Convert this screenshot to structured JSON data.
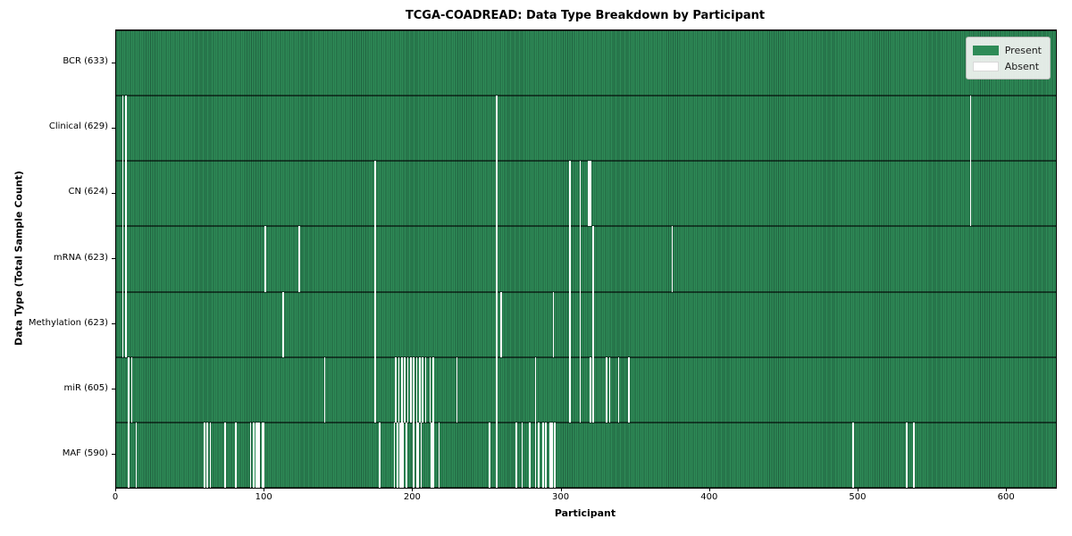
{
  "chart_data": {
    "type": "heatmap",
    "title": "TCGA-COADREAD: Data Type Breakdown by Participant",
    "xlabel": "Participant",
    "ylabel": "Data Type (Total Sample Count)",
    "xlim": [
      0,
      633
    ],
    "x_ticks": [
      0,
      100,
      200,
      300,
      400,
      500,
      600
    ],
    "total_participants": 633,
    "grid": false,
    "legend_position": "upper right",
    "legend": {
      "present": "Present",
      "absent": "Absent"
    },
    "colors": {
      "present": "#2e8b57",
      "present_edge": "#20603f",
      "absent": "#ffffff",
      "legend_bg": "#f3f4f2",
      "legend_border": "#b9bbb9"
    },
    "rows": [
      {
        "name": "BCR",
        "label": "BCR (633)",
        "count": 633,
        "absent_participants": []
      },
      {
        "name": "Clinical",
        "label": "Clinical (629)",
        "count": 629,
        "absent_participants": [
          4,
          6,
          256,
          575
        ]
      },
      {
        "name": "CN",
        "label": "CN (624)",
        "count": 624,
        "absent_participants": [
          4,
          6,
          174,
          256,
          305,
          312,
          318,
          319,
          575
        ]
      },
      {
        "name": "mRNA",
        "label": "mRNA (623)",
        "count": 623,
        "absent_participants": [
          4,
          6,
          100,
          123,
          174,
          256,
          305,
          312,
          321,
          374
        ]
      },
      {
        "name": "Methylation",
        "label": "Methylation (623)",
        "count": 623,
        "absent_participants": [
          4,
          6,
          112,
          174,
          256,
          259,
          294,
          305,
          312,
          321
        ]
      },
      {
        "name": "miR",
        "label": "miR (605)",
        "count": 605,
        "absent_participants": [
          8,
          10,
          140,
          174,
          188,
          190,
          192,
          194,
          196,
          198,
          200,
          202,
          204,
          206,
          208,
          211,
          213,
          229,
          256,
          282,
          305,
          312,
          319,
          321,
          330,
          332,
          338,
          345
        ]
      },
      {
        "name": "MAF",
        "label": "MAF (590)",
        "count": 590,
        "absent_participants": [
          8,
          13,
          59,
          61,
          63,
          73,
          80,
          90,
          92,
          94,
          95,
          96,
          98,
          99,
          177,
          187,
          189,
          191,
          192,
          193,
          195,
          200,
          202,
          203,
          205,
          212,
          213,
          217,
          251,
          256,
          269,
          273,
          278,
          282,
          284,
          287,
          289,
          292,
          293,
          295,
          496,
          532,
          537
        ]
      }
    ]
  }
}
